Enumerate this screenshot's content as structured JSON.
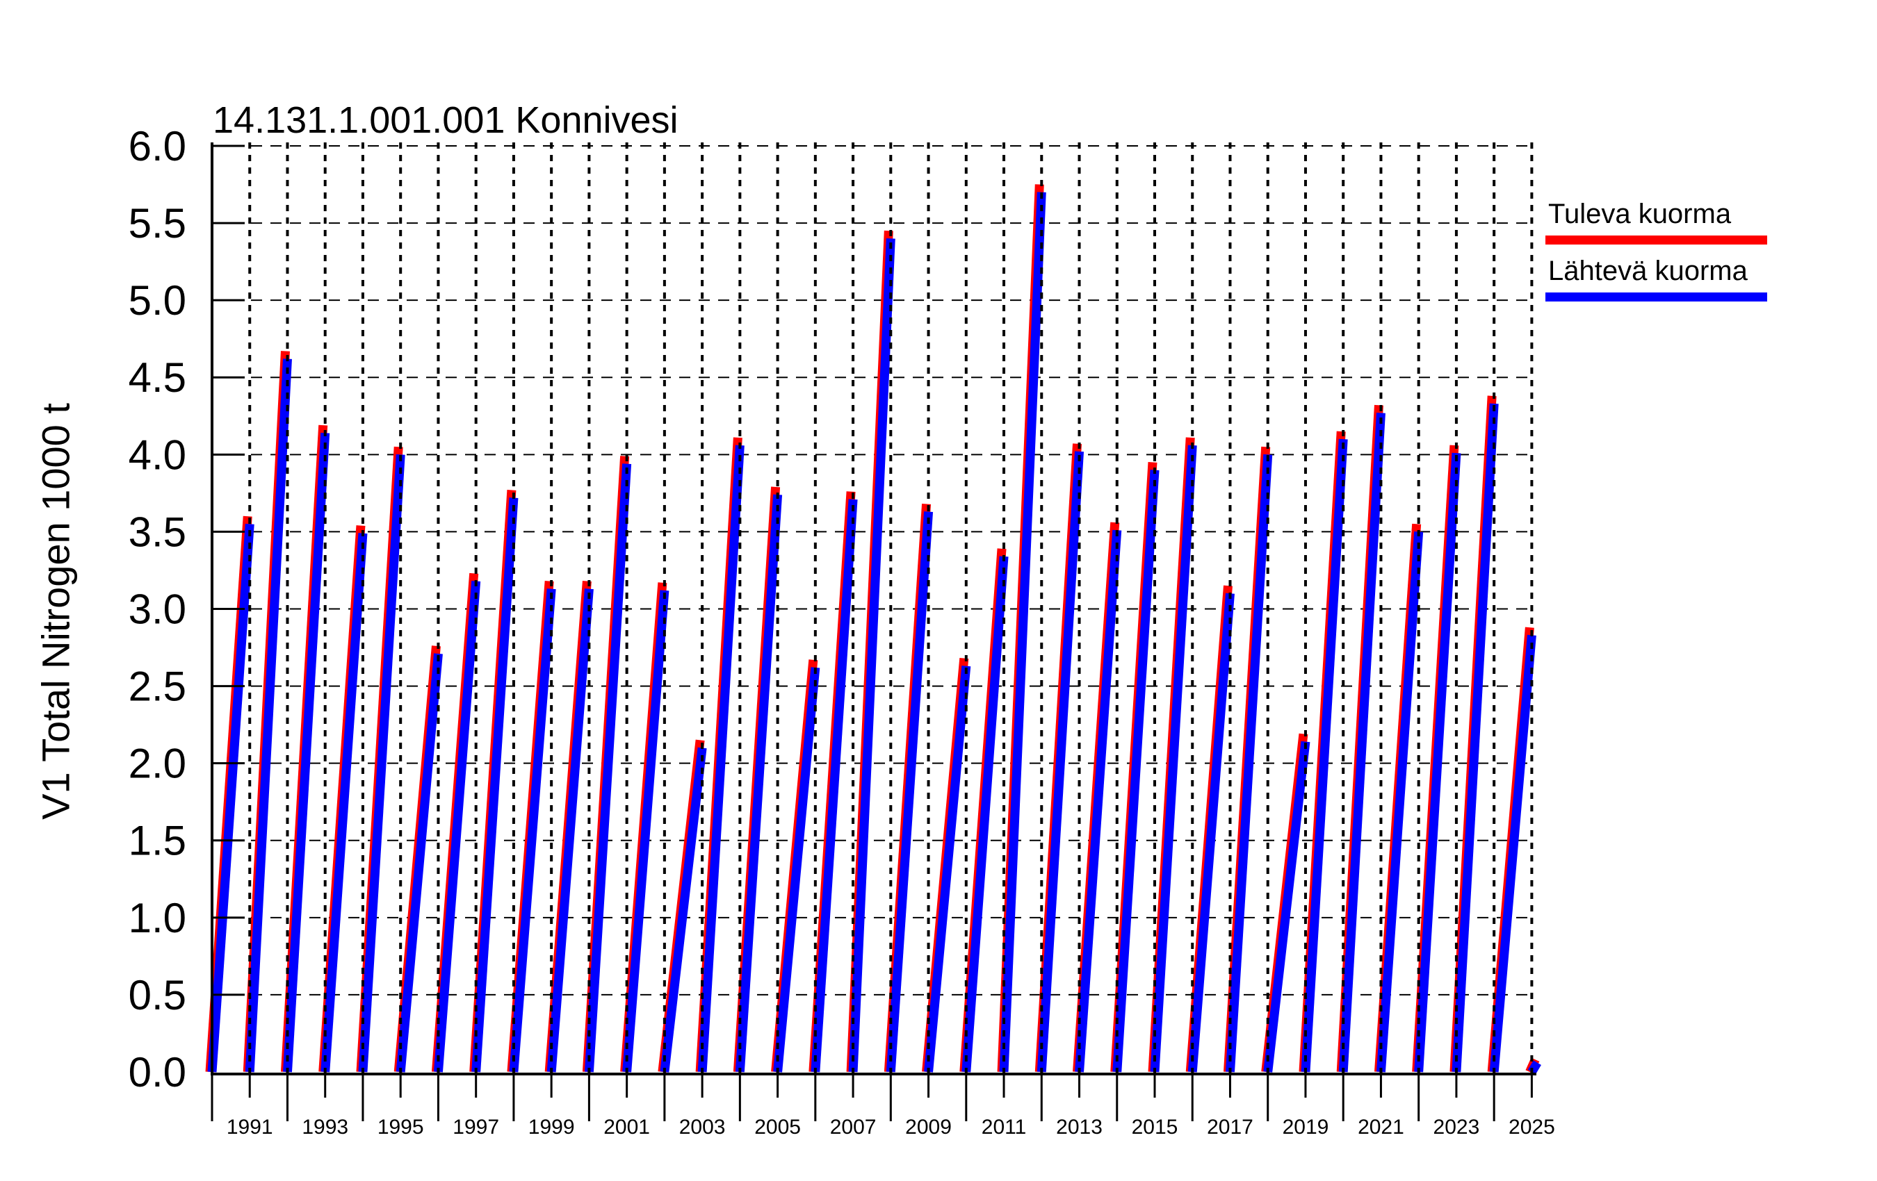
{
  "title": "14.131.1.001.001 Konnivesi",
  "chart_data": {
    "type": "line",
    "title": "14.131.1.001.001 Konnivesi",
    "xlabel": "",
    "ylabel": "V1 Total Nitrogen 1000 t",
    "ylim": [
      0.0,
      6.0
    ],
    "xlim": [
      1990,
      2025.15
    ],
    "grid": "dashed horizontal at every 0.5, bold dotted vertical at every year",
    "legend_position": "top-right outside plot",
    "y_tick_labels": [
      "0.0",
      "0.5",
      "1.0",
      "1.5",
      "2.0",
      "2.5",
      "3.0",
      "3.5",
      "4.0",
      "4.5",
      "5.0",
      "5.5",
      "6.0"
    ],
    "x_tick_labels": [
      "1991",
      "1993",
      "1995",
      "1997",
      "1999",
      "2001",
      "2003",
      "2005",
      "2007",
      "2009",
      "2011",
      "2013",
      "2015",
      "2017",
      "2019",
      "2021",
      "2023",
      "2025"
    ],
    "years": [
      1990,
      1991,
      1992,
      1993,
      1994,
      1995,
      1996,
      1997,
      1998,
      1999,
      2000,
      2001,
      2002,
      2003,
      2004,
      2005,
      2006,
      2007,
      2008,
      2009,
      2010,
      2011,
      2012,
      2013,
      2014,
      2015,
      2016,
      2017,
      2018,
      2019,
      2020,
      2021,
      2022,
      2023,
      2024
    ],
    "description": "Each year's line rises from 0 in January to its cumulative annual peak in December, then resets; red incoming load is almost fully covered by blue outgoing load except at the peak tips.",
    "series": [
      {
        "name": "Tuleva kuorma",
        "color": "#ff0000",
        "annual_peaks": [
          3.6,
          4.67,
          4.19,
          3.54,
          4.05,
          2.76,
          3.23,
          3.77,
          3.18,
          3.18,
          3.99,
          3.17,
          2.15,
          4.11,
          3.79,
          2.67,
          3.76,
          5.45,
          3.68,
          2.68,
          3.39,
          5.75,
          4.07,
          3.56,
          3.95,
          4.11,
          3.15,
          4.05,
          2.19,
          4.15,
          4.32,
          3.55,
          4.06,
          4.38,
          2.88
        ],
        "partial_2025_peak": 0.08
      },
      {
        "name": "Lähtevä kuorma",
        "color": "#0000ff",
        "annual_peaks": [
          3.55,
          4.62,
          4.14,
          3.49,
          4.0,
          2.71,
          3.18,
          3.72,
          3.13,
          3.13,
          3.94,
          3.12,
          2.1,
          4.06,
          3.74,
          2.62,
          3.71,
          5.4,
          3.63,
          2.63,
          3.34,
          5.7,
          4.02,
          3.51,
          3.9,
          4.06,
          3.1,
          4.0,
          2.14,
          4.1,
          4.27,
          3.5,
          4.01,
          4.33,
          2.83
        ],
        "partial_2025_peak": 0.06
      }
    ]
  }
}
